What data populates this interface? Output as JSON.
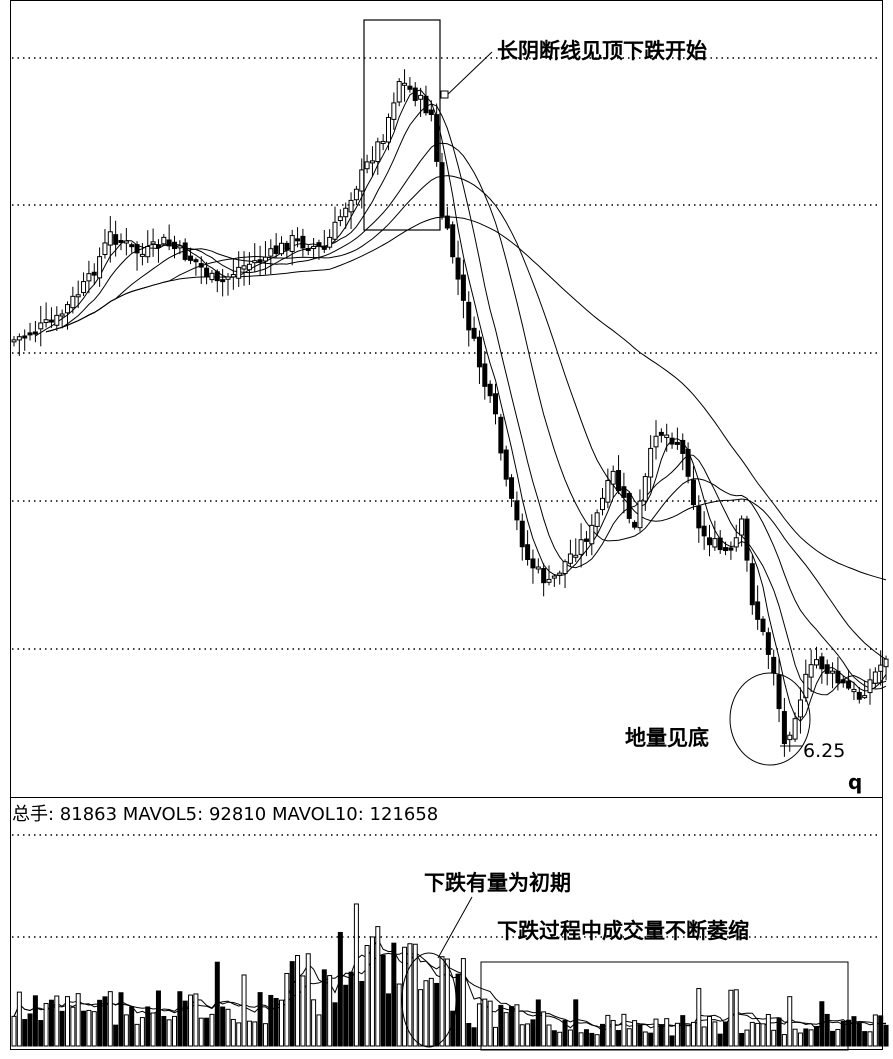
{
  "chart_data": {
    "type": "candlestick",
    "panels": [
      "price",
      "volume"
    ],
    "price": {
      "low_value_label": "6.25",
      "corner_label": "q"
    },
    "volume": {
      "legend": {
        "total_label": "总手",
        "total_value": "81863",
        "mavol5_label": "MAVOL5",
        "mavol5_value": "92810",
        "mavol10_label": "MAVOL10",
        "mavol10_value": "121658"
      }
    },
    "annotations": {
      "top": "长阴断线见顶下跌开始",
      "bottom": "地量见底",
      "volume_initial": "下跌有量为初期",
      "volume_shrinking": "下跌过程中成交量不断萎缩"
    },
    "grid": true,
    "colors": {
      "background": "#ffffff",
      "foreground": "#000000"
    }
  }
}
